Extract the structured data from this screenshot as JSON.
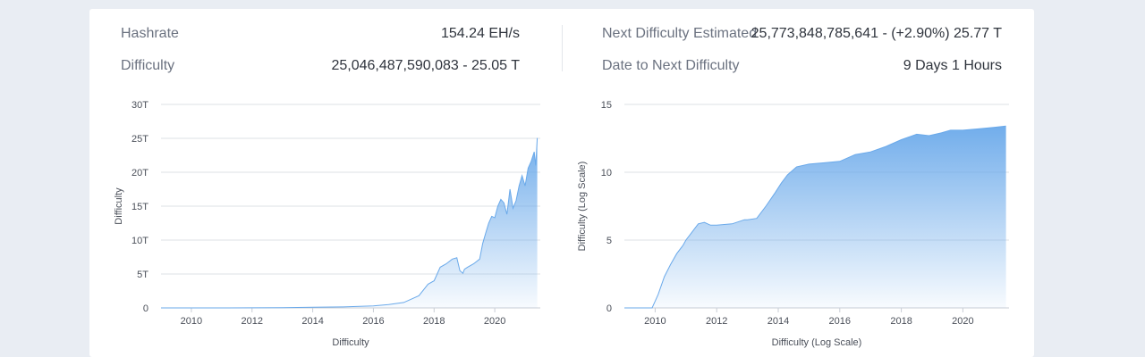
{
  "stats": {
    "hashrate_label": "Hashrate",
    "hashrate_value": "154.24 EH/s",
    "difficulty_label": "Difficulty",
    "difficulty_value": "25,046,487,590,083 - 25.05 T",
    "next_label": "Next Difficulty Estimated",
    "next_value": "25,773,848,785,641 - (+2.90%) 25.77 T",
    "date_label": "Date to Next Difficulty",
    "date_value": "9 Days 1 Hours"
  },
  "colors": {
    "accent": "#6aa9ea",
    "grid": "#dde1e6"
  },
  "chart_data": [
    {
      "type": "area",
      "ylabel": "Difficulty",
      "xlabel": "Difficulty",
      "x_ticks": [
        "2010",
        "2012",
        "2014",
        "2016",
        "2018",
        "2020"
      ],
      "y_ticks": [
        "0",
        "5T",
        "10T",
        "15T",
        "20T",
        "25T",
        "30T"
      ],
      "xlim": [
        2009.0,
        2021.5
      ],
      "ylim": [
        0,
        30
      ],
      "grid": true,
      "unit": "T",
      "x": [
        2009.0,
        2010.0,
        2011.0,
        2012.0,
        2013.0,
        2014.0,
        2015.0,
        2016.0,
        2016.5,
        2017.0,
        2017.5,
        2017.8,
        2018.0,
        2018.2,
        2018.4,
        2018.6,
        2018.75,
        2018.85,
        2018.95,
        2019.0,
        2019.1,
        2019.3,
        2019.5,
        2019.6,
        2019.7,
        2019.8,
        2019.9,
        2020.0,
        2020.1,
        2020.2,
        2020.3,
        2020.4,
        2020.5,
        2020.6,
        2020.7,
        2020.8,
        2020.9,
        2021.0,
        2021.1,
        2021.2,
        2021.3,
        2021.35,
        2021.4
      ],
      "values": [
        0,
        0,
        0,
        0.01,
        0.02,
        0.1,
        0.15,
        0.3,
        0.5,
        0.8,
        1.8,
        3.5,
        4.0,
        6.0,
        6.5,
        7.2,
        7.4,
        5.5,
        5.1,
        5.7,
        6.0,
        6.5,
        7.2,
        9.5,
        11.0,
        12.5,
        13.5,
        13.3,
        15.0,
        16.0,
        15.5,
        13.8,
        17.5,
        14.7,
        15.8,
        18.0,
        19.5,
        18.0,
        20.6,
        21.6,
        23.0,
        21.0,
        25.05
      ]
    },
    {
      "type": "area",
      "ylabel": "Difficulty (Log Scale)",
      "xlabel": "Difficulty (Log Scale)",
      "x_ticks": [
        "2010",
        "2012",
        "2014",
        "2016",
        "2018",
        "2020"
      ],
      "y_ticks": [
        "0",
        "5",
        "10",
        "15"
      ],
      "xlim": [
        2009.0,
        2021.5
      ],
      "ylim": [
        0,
        15
      ],
      "grid": true,
      "x": [
        2009.0,
        2009.9,
        2010.0,
        2010.1,
        2010.3,
        2010.5,
        2010.7,
        2010.9,
        2011.0,
        2011.2,
        2011.4,
        2011.6,
        2011.8,
        2012.0,
        2012.5,
        2012.9,
        2013.0,
        2013.3,
        2013.6,
        2013.9,
        2014.1,
        2014.3,
        2014.6,
        2015.0,
        2015.5,
        2016.0,
        2016.5,
        2017.0,
        2017.5,
        2018.0,
        2018.5,
        2018.9,
        2019.3,
        2019.6,
        2020.0,
        2020.5,
        2021.0,
        2021.4
      ],
      "values": [
        0,
        0,
        0.5,
        1.0,
        2.3,
        3.2,
        4.0,
        4.6,
        5.0,
        5.6,
        6.2,
        6.3,
        6.1,
        6.1,
        6.2,
        6.5,
        6.5,
        6.6,
        7.5,
        8.5,
        9.2,
        9.8,
        10.4,
        10.6,
        10.7,
        10.8,
        11.3,
        11.5,
        11.9,
        12.4,
        12.8,
        12.7,
        12.9,
        13.1,
        13.1,
        13.2,
        13.3,
        13.4
      ]
    }
  ]
}
